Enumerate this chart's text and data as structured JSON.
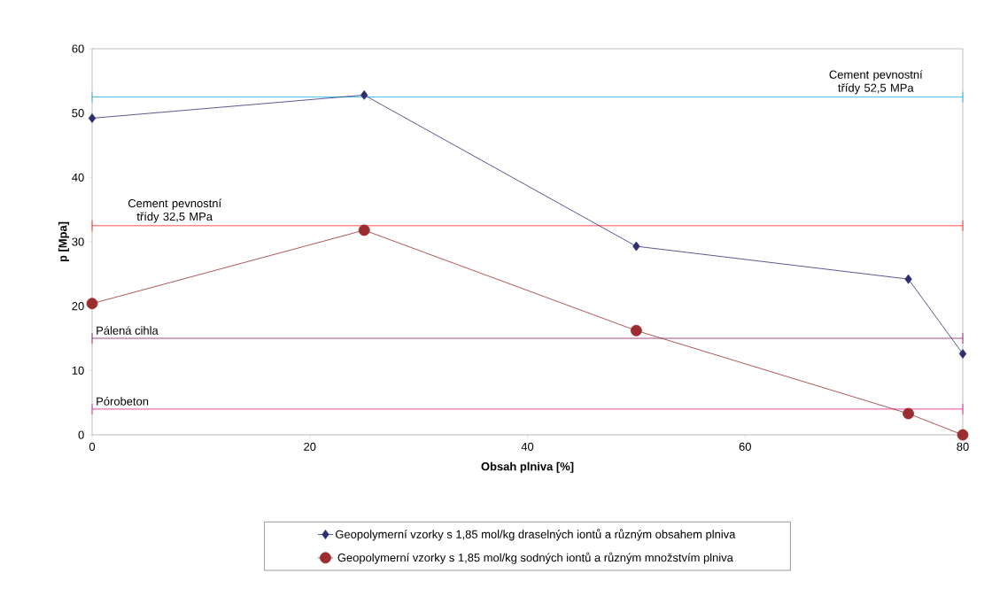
{
  "chart_data": {
    "type": "line",
    "xlabel": "Obsah plniva [%]",
    "ylabel": "p [Mpa]",
    "xlim": [
      0,
      80
    ],
    "xticks": [
      0,
      20,
      40,
      60,
      80
    ],
    "ylim": [
      0,
      60
    ],
    "yticks": [
      0,
      10,
      20,
      30,
      40,
      50,
      60
    ],
    "x": [
      0,
      25,
      50,
      75,
      80
    ],
    "grid": false,
    "legend": "bottom",
    "series": [
      {
        "name": "Geopolymerní vzorky s 1,85 mol/kg draselných iontů a různým obsahem plniva",
        "color": "#2e2e72",
        "marker": "diamond",
        "values": [
          49.2,
          52.8,
          29.3,
          24.2,
          12.6
        ]
      },
      {
        "name": "Geopolymerní vzorky s 1,85 mol/kg sodných iontů a různým množstvím plniva",
        "color": "#9b2d30",
        "marker": "circle",
        "values": [
          20.4,
          31.8,
          16.2,
          3.3,
          0
        ]
      }
    ],
    "ref_lines": [
      {
        "axis": "y",
        "value": 52.5,
        "label": "Cement pevnostní třídy 52,5 MPa",
        "color": "#1fb4e8"
      },
      {
        "axis": "y",
        "value": 32.5,
        "label": "Cement pevnostní třídy 32,5 MPa",
        "color": "#ff2222"
      },
      {
        "axis": "y",
        "value": 15,
        "label": "Pálená cihla",
        "color": "#8b1f6b"
      },
      {
        "axis": "y",
        "value": 4,
        "label": "Pórobeton",
        "color": "#e8188a"
      }
    ]
  }
}
